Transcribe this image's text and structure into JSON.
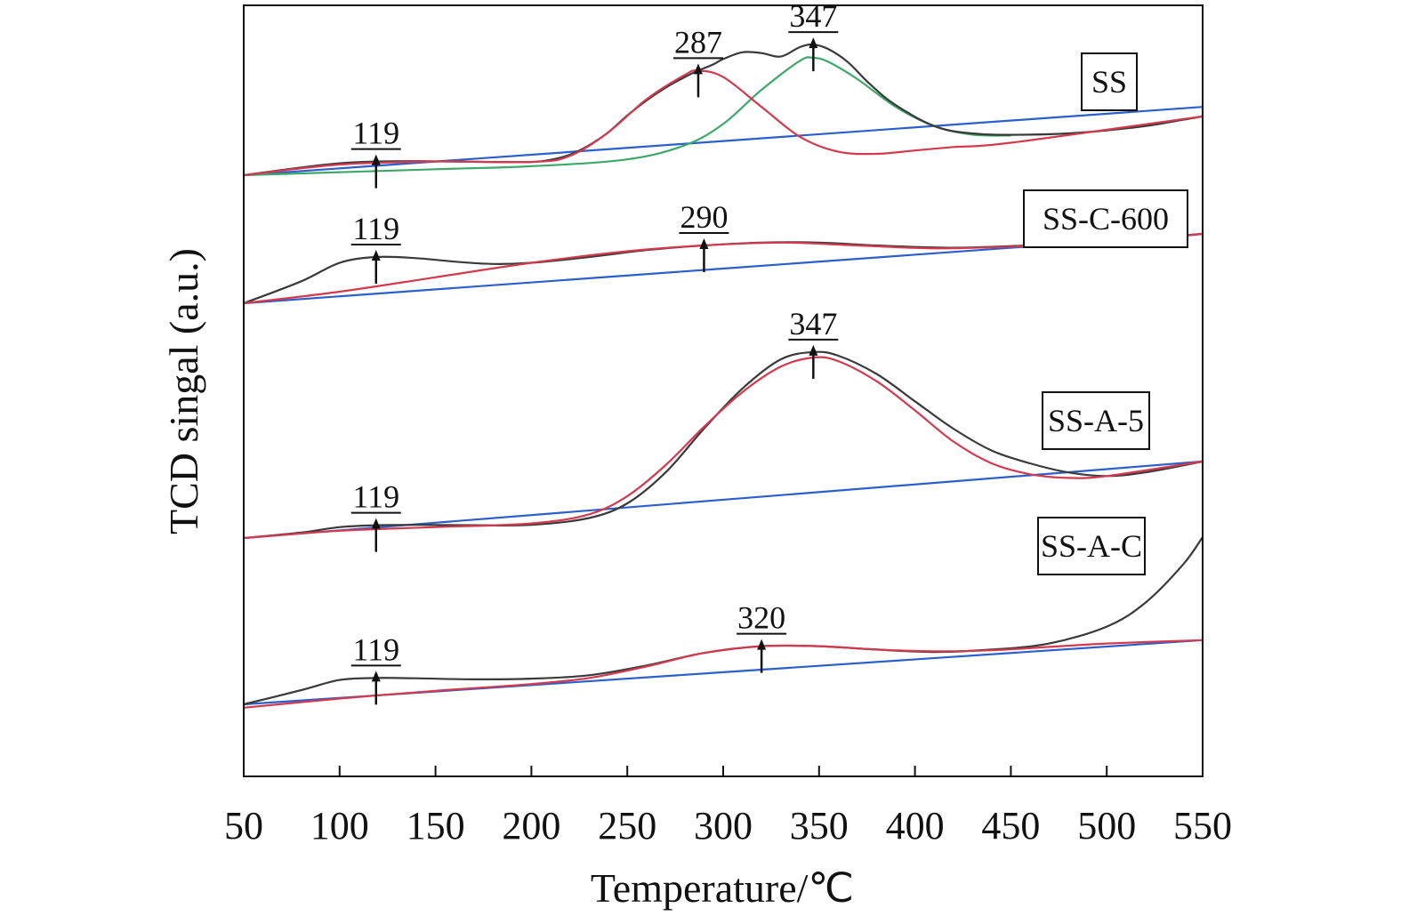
{
  "chart_data": {
    "type": "line",
    "xlabel": "Temperature/℃",
    "ylabel": "TCD singal (a.u.)",
    "xlim": [
      50,
      550
    ],
    "xticks": [
      "50",
      "100",
      "150",
      "200",
      "250",
      "300",
      "350",
      "400",
      "450",
      "500",
      "550"
    ],
    "colors": {
      "measured": "#3a3a3a",
      "fit_peak": "#d23a4f",
      "fit_peak_2": "#3ea86a",
      "baseline": "#2c5fc9"
    },
    "panels": [
      {
        "label": "SS",
        "peaks": [
          {
            "label": "119",
            "x": 119
          },
          {
            "label": "287",
            "x": 287
          },
          {
            "label": "347",
            "x": 347
          }
        ],
        "baseline": {
          "x": [
            50,
            550
          ],
          "y": [
            0,
            1.6
          ]
        },
        "measured": {
          "x": [
            50,
            80,
            100,
            119,
            140,
            160,
            180,
            200,
            210,
            220,
            230,
            240,
            250,
            260,
            270,
            280,
            287,
            295,
            300,
            310,
            320,
            330,
            340,
            347,
            355,
            365,
            375,
            385,
            395,
            405,
            415,
            425,
            440,
            460,
            480,
            500,
            520,
            540,
            550
          ],
          "y": [
            0,
            0.18,
            0.28,
            0.32,
            0.33,
            0.32,
            0.31,
            0.31,
            0.36,
            0.48,
            0.7,
            1.0,
            1.4,
            1.75,
            2.05,
            2.3,
            2.45,
            2.6,
            2.72,
            2.88,
            2.86,
            2.78,
            3.0,
            3.06,
            2.95,
            2.65,
            2.2,
            1.8,
            1.5,
            1.25,
            1.08,
            1.0,
            0.95,
            0.95,
            0.98,
            1.05,
            1.15,
            1.3,
            1.38
          ]
        },
        "fit_peak": {
          "x": [
            50,
            100,
            150,
            200,
            220,
            240,
            260,
            280,
            287,
            300,
            320,
            340,
            360,
            380,
            400,
            420,
            450,
            550
          ],
          "y": [
            0,
            0.25,
            0.32,
            0.31,
            0.45,
            1.0,
            1.78,
            2.35,
            2.45,
            2.3,
            1.6,
            0.9,
            0.55,
            0.5,
            0.58,
            0.66,
            0.76,
            1.38
          ]
        },
        "fit_peak_2": {
          "x": [
            50,
            150,
            200,
            250,
            280,
            300,
            320,
            340,
            347,
            355,
            370,
            390,
            410,
            430,
            450
          ],
          "y": [
            0,
            0.14,
            0.21,
            0.37,
            0.7,
            1.2,
            2.0,
            2.68,
            2.75,
            2.65,
            2.25,
            1.6,
            1.15,
            0.95,
            0.93
          ]
        }
      },
      {
        "label": "SS-C-600",
        "peaks": [
          {
            "label": "119",
            "x": 119
          },
          {
            "label": "290",
            "x": 290
          }
        ],
        "baseline": {
          "x": [
            50,
            550
          ],
          "y": [
            0,
            1.2
          ]
        },
        "measured": {
          "x": [
            50,
            80,
            100,
            119,
            140,
            160,
            180,
            200,
            230,
            260,
            290,
            320,
            350,
            380,
            420,
            460,
            500,
            550
          ],
          "y": [
            0,
            0.38,
            0.7,
            0.8,
            0.78,
            0.72,
            0.68,
            0.7,
            0.8,
            0.92,
            1.0,
            1.05,
            1.05,
            1.0,
            0.96,
            1.0,
            1.05,
            1.2
          ]
        },
        "fit_peak": {
          "x": [
            50,
            100,
            150,
            200,
            250,
            290,
            330,
            370,
            410,
            450,
            500,
            550
          ],
          "y": [
            0,
            0.2,
            0.45,
            0.7,
            0.9,
            1.0,
            1.05,
            1.0,
            0.95,
            0.98,
            1.05,
            1.2
          ]
        }
      },
      {
        "label": "SS-A-5",
        "peaks": [
          {
            "label": "119",
            "x": 119
          },
          {
            "label": "347",
            "x": 347
          }
        ],
        "baseline": {
          "x": [
            50,
            550
          ],
          "y": [
            0,
            2.1
          ]
        },
        "measured": {
          "x": [
            50,
            80,
            100,
            119,
            140,
            170,
            200,
            230,
            250,
            270,
            290,
            310,
            330,
            347,
            360,
            380,
            400,
            420,
            440,
            460,
            480,
            500,
            520,
            550
          ],
          "y": [
            0,
            0.15,
            0.3,
            0.35,
            0.36,
            0.35,
            0.36,
            0.55,
            0.95,
            1.8,
            3.0,
            4.1,
            4.9,
            5.1,
            5.0,
            4.5,
            3.75,
            3.0,
            2.4,
            2.05,
            1.8,
            1.7,
            1.8,
            2.1
          ]
        },
        "fit_peak": {
          "x": [
            50,
            100,
            150,
            200,
            230,
            250,
            270,
            290,
            310,
            330,
            347,
            360,
            380,
            400,
            420,
            440,
            460,
            480,
            500,
            550
          ],
          "y": [
            0,
            0.2,
            0.3,
            0.4,
            0.65,
            1.15,
            2.0,
            3.05,
            4.0,
            4.7,
            4.95,
            4.85,
            4.3,
            3.5,
            2.65,
            2.05,
            1.75,
            1.65,
            1.7,
            2.1
          ]
        }
      },
      {
        "label": "SS-A-C",
        "peaks": [
          {
            "label": "119",
            "x": 119
          },
          {
            "label": "320",
            "x": 320
          }
        ],
        "baseline": {
          "x": [
            50,
            550
          ],
          "y": [
            0,
            1.9
          ]
        },
        "measured": {
          "x": [
            50,
            80,
            100,
            119,
            140,
            170,
            200,
            230,
            260,
            290,
            320,
            350,
            380,
            410,
            440,
            470,
            500,
            520,
            540,
            550
          ],
          "y": [
            0,
            0.42,
            0.72,
            0.78,
            0.77,
            0.74,
            0.76,
            0.86,
            1.15,
            1.52,
            1.72,
            1.72,
            1.62,
            1.55,
            1.62,
            1.8,
            2.3,
            3.0,
            4.15,
            4.95
          ]
        },
        "fit_peak": {
          "x": [
            50,
            100,
            150,
            200,
            230,
            260,
            290,
            320,
            350,
            380,
            410,
            440,
            470,
            500,
            550
          ],
          "y": [
            -0.1,
            0.17,
            0.4,
            0.6,
            0.78,
            1.12,
            1.52,
            1.72,
            1.72,
            1.62,
            1.57,
            1.6,
            1.7,
            1.8,
            1.9
          ]
        }
      }
    ]
  }
}
